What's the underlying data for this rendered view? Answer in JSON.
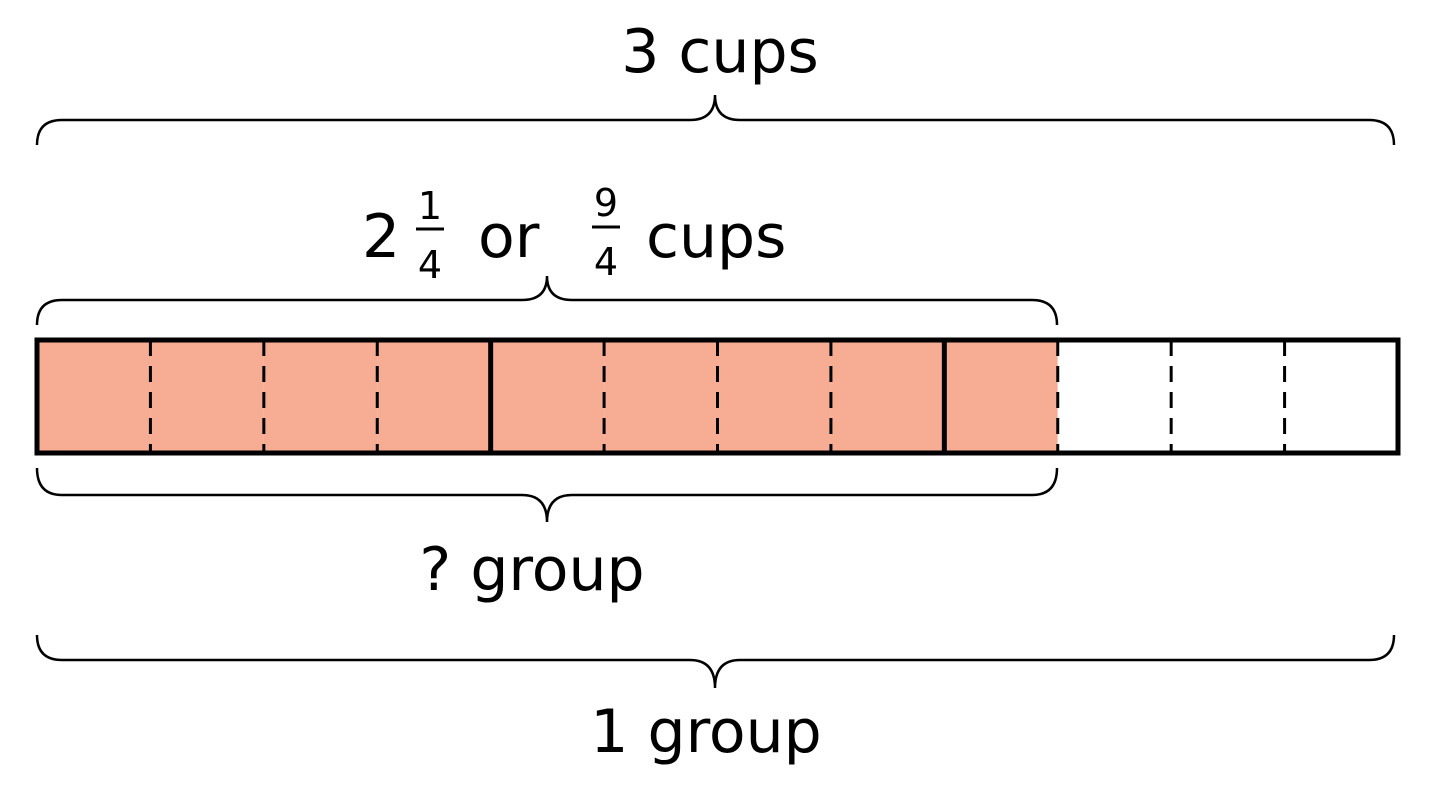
{
  "labels": {
    "top": "3 cups",
    "middle": {
      "whole": "2",
      "mixed_numerator": "1",
      "mixed_denominator": "4",
      "or": "or",
      "improper_numerator": "9",
      "improper_denominator": "4",
      "unit": "cups"
    },
    "under_bar": "? group",
    "bottom": "1 group"
  },
  "tape": {
    "parts": 12,
    "shaded_parts": 9,
    "parts_per_cup": 4,
    "shade_color": "#F7AC94",
    "outline_color": "#000000"
  }
}
